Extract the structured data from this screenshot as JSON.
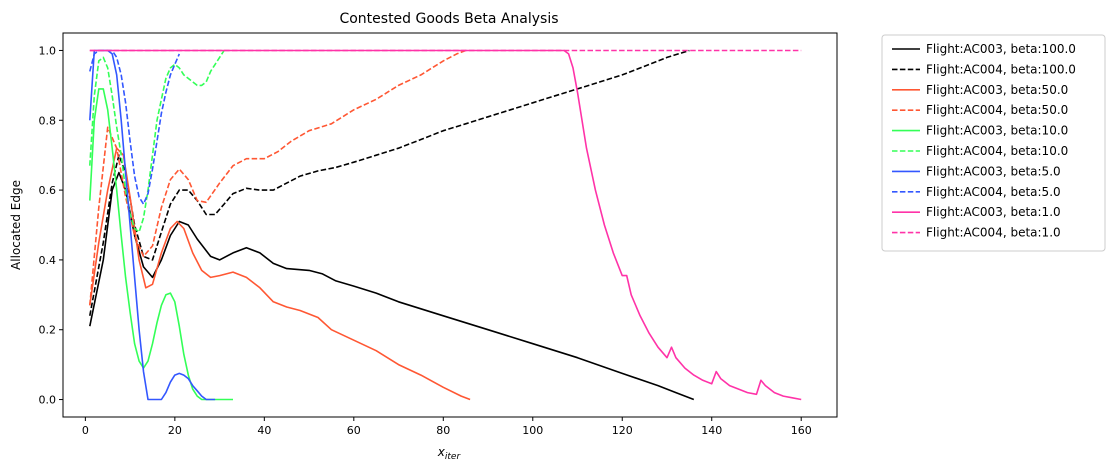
{
  "chart_data": {
    "type": "line",
    "title": "Contested Goods Beta Analysis",
    "xlabel_main": "x",
    "xlabel_sub": "iter",
    "ylabel": "Allocated Edge",
    "xlim": [
      -5,
      168
    ],
    "ylim": [
      -0.05,
      1.05
    ],
    "xticks": [
      0,
      20,
      40,
      60,
      80,
      100,
      120,
      140,
      160
    ],
    "yticks": [
      0.0,
      0.2,
      0.4,
      0.6,
      0.8,
      1.0
    ],
    "ytick_labels": [
      "0.0",
      "0.2",
      "0.4",
      "0.6",
      "0.8",
      "1.0"
    ],
    "grid": false,
    "legend_position": "outside-right",
    "series": [
      {
        "name": "Flight:AC003, beta:100.0",
        "color": "#000000",
        "dash": "solid",
        "points": [
          [
            1,
            0.21
          ],
          [
            4,
            0.4
          ],
          [
            6,
            0.6
          ],
          [
            7.5,
            0.65
          ],
          [
            9,
            0.6
          ],
          [
            11,
            0.47
          ],
          [
            13,
            0.38
          ],
          [
            15,
            0.35
          ],
          [
            17,
            0.4
          ],
          [
            19,
            0.47
          ],
          [
            21,
            0.51
          ],
          [
            23,
            0.5
          ],
          [
            25,
            0.46
          ],
          [
            28,
            0.41
          ],
          [
            30,
            0.4
          ],
          [
            33,
            0.42
          ],
          [
            36,
            0.435
          ],
          [
            39,
            0.42
          ],
          [
            42,
            0.39
          ],
          [
            45,
            0.375
          ],
          [
            50,
            0.37
          ],
          [
            53,
            0.36
          ],
          [
            56,
            0.34
          ],
          [
            60,
            0.325
          ],
          [
            65,
            0.305
          ],
          [
            70,
            0.28
          ],
          [
            75,
            0.26
          ],
          [
            80,
            0.24
          ],
          [
            90,
            0.2
          ],
          [
            100,
            0.16
          ],
          [
            110,
            0.12
          ],
          [
            120,
            0.075
          ],
          [
            128,
            0.04
          ],
          [
            132,
            0.02
          ],
          [
            136,
            0.0
          ]
        ]
      },
      {
        "name": "Flight:AC004, beta:100.0",
        "color": "#000000",
        "dash": "dashed",
        "points": [
          [
            1,
            0.24
          ],
          [
            4,
            0.45
          ],
          [
            6,
            0.62
          ],
          [
            7.5,
            0.7
          ],
          [
            9,
            0.65
          ],
          [
            11,
            0.5
          ],
          [
            13,
            0.41
          ],
          [
            15,
            0.4
          ],
          [
            17,
            0.48
          ],
          [
            19,
            0.56
          ],
          [
            21,
            0.6
          ],
          [
            23,
            0.6
          ],
          [
            25,
            0.57
          ],
          [
            27,
            0.53
          ],
          [
            29,
            0.53
          ],
          [
            31,
            0.56
          ],
          [
            33,
            0.59
          ],
          [
            36,
            0.605
          ],
          [
            39,
            0.6
          ],
          [
            42,
            0.6
          ],
          [
            45,
            0.62
          ],
          [
            48,
            0.64
          ],
          [
            52,
            0.655
          ],
          [
            56,
            0.665
          ],
          [
            60,
            0.68
          ],
          [
            65,
            0.7
          ],
          [
            70,
            0.72
          ],
          [
            75,
            0.745
          ],
          [
            80,
            0.77
          ],
          [
            85,
            0.79
          ],
          [
            90,
            0.81
          ],
          [
            95,
            0.83
          ],
          [
            100,
            0.85
          ],
          [
            105,
            0.87
          ],
          [
            110,
            0.89
          ],
          [
            115,
            0.91
          ],
          [
            120,
            0.93
          ],
          [
            125,
            0.955
          ],
          [
            130,
            0.98
          ],
          [
            135,
            1.0
          ]
        ]
      },
      {
        "name": "Flight:AC003, beta:50.0",
        "color": "#ff5733",
        "dash": "solid",
        "points": [
          [
            1,
            0.27
          ],
          [
            3,
            0.45
          ],
          [
            5,
            0.6
          ],
          [
            7,
            0.72
          ],
          [
            8.5,
            0.7
          ],
          [
            10,
            0.58
          ],
          [
            12,
            0.4
          ],
          [
            13.5,
            0.32
          ],
          [
            15,
            0.33
          ],
          [
            17,
            0.42
          ],
          [
            19,
            0.49
          ],
          [
            20.5,
            0.51
          ],
          [
            22,
            0.49
          ],
          [
            24,
            0.42
          ],
          [
            26,
            0.37
          ],
          [
            28,
            0.35
          ],
          [
            30,
            0.355
          ],
          [
            33,
            0.365
          ],
          [
            36,
            0.35
          ],
          [
            39,
            0.32
          ],
          [
            42,
            0.28
          ],
          [
            45,
            0.265
          ],
          [
            48,
            0.255
          ],
          [
            52,
            0.235
          ],
          [
            55,
            0.2
          ],
          [
            60,
            0.17
          ],
          [
            65,
            0.14
          ],
          [
            70,
            0.1
          ],
          [
            75,
            0.07
          ],
          [
            80,
            0.035
          ],
          [
            84,
            0.01
          ],
          [
            86,
            0.0
          ]
        ]
      },
      {
        "name": "Flight:AC004, beta:50.0",
        "color": "#ff5733",
        "dash": "dashed",
        "points": [
          [
            1,
            0.27
          ],
          [
            3,
            0.55
          ],
          [
            5,
            0.78
          ],
          [
            7,
            0.72
          ],
          [
            9,
            0.58
          ],
          [
            11,
            0.47
          ],
          [
            13,
            0.41
          ],
          [
            15,
            0.44
          ],
          [
            17,
            0.55
          ],
          [
            19,
            0.63
          ],
          [
            21,
            0.66
          ],
          [
            23,
            0.63
          ],
          [
            25,
            0.57
          ],
          [
            27,
            0.565
          ],
          [
            30,
            0.62
          ],
          [
            33,
            0.67
          ],
          [
            36,
            0.69
          ],
          [
            40,
            0.69
          ],
          [
            43,
            0.71
          ],
          [
            46,
            0.74
          ],
          [
            50,
            0.77
          ],
          [
            55,
            0.79
          ],
          [
            60,
            0.83
          ],
          [
            65,
            0.86
          ],
          [
            70,
            0.9
          ],
          [
            75,
            0.93
          ],
          [
            80,
            0.97
          ],
          [
            83,
            0.99
          ],
          [
            85,
            1.0
          ]
        ]
      },
      {
        "name": "Flight:AC003, beta:10.0",
        "color": "#33ff57",
        "dash": "solid",
        "points": [
          [
            1,
            0.57
          ],
          [
            2,
            0.8
          ],
          [
            3,
            0.89
          ],
          [
            4,
            0.89
          ],
          [
            5,
            0.83
          ],
          [
            6,
            0.72
          ],
          [
            7,
            0.6
          ],
          [
            8,
            0.47
          ],
          [
            9,
            0.35
          ],
          [
            10,
            0.25
          ],
          [
            11,
            0.16
          ],
          [
            12,
            0.11
          ],
          [
            13,
            0.09
          ],
          [
            14,
            0.11
          ],
          [
            15,
            0.16
          ],
          [
            16,
            0.22
          ],
          [
            17,
            0.27
          ],
          [
            18,
            0.3
          ],
          [
            19,
            0.305
          ],
          [
            20,
            0.28
          ],
          [
            21,
            0.21
          ],
          [
            22,
            0.13
          ],
          [
            23,
            0.07
          ],
          [
            24,
            0.03
          ],
          [
            25,
            0.01
          ],
          [
            26,
            0.0
          ],
          [
            28,
            0.0
          ],
          [
            33,
            0.0
          ]
        ]
      },
      {
        "name": "Flight:AC004, beta:10.0",
        "color": "#33ff57",
        "dash": "dashed",
        "points": [
          [
            1,
            0.67
          ],
          [
            2,
            0.87
          ],
          [
            3,
            0.97
          ],
          [
            4,
            0.98
          ],
          [
            5,
            0.95
          ],
          [
            6,
            0.87
          ],
          [
            7,
            0.78
          ],
          [
            8,
            0.7
          ],
          [
            9,
            0.6
          ],
          [
            10,
            0.53
          ],
          [
            11,
            0.49
          ],
          [
            12,
            0.48
          ],
          [
            13,
            0.52
          ],
          [
            14,
            0.6
          ],
          [
            15,
            0.7
          ],
          [
            16,
            0.8
          ],
          [
            17,
            0.86
          ],
          [
            18,
            0.92
          ],
          [
            19,
            0.95
          ],
          [
            20,
            0.96
          ],
          [
            21,
            0.95
          ],
          [
            22,
            0.93
          ],
          [
            24,
            0.91
          ],
          [
            25,
            0.9
          ],
          [
            26,
            0.9
          ],
          [
            27,
            0.91
          ],
          [
            28,
            0.94
          ],
          [
            29,
            0.96
          ],
          [
            30,
            0.98
          ],
          [
            31,
            1.0
          ]
        ]
      },
      {
        "name": "Flight:AC003, beta:5.0",
        "color": "#3357ff",
        "dash": "solid",
        "points": [
          [
            1,
            0.8
          ],
          [
            2,
            1.0
          ],
          [
            5,
            1.0
          ],
          [
            6,
            0.99
          ],
          [
            7,
            0.93
          ],
          [
            8,
            0.8
          ],
          [
            9,
            0.65
          ],
          [
            10,
            0.5
          ],
          [
            11,
            0.35
          ],
          [
            12,
            0.2
          ],
          [
            13,
            0.08
          ],
          [
            14,
            0.0
          ],
          [
            15,
            0.0
          ],
          [
            17,
            0.0
          ],
          [
            18,
            0.02
          ],
          [
            19,
            0.05
          ],
          [
            20,
            0.07
          ],
          [
            21,
            0.075
          ],
          [
            22,
            0.07
          ],
          [
            23,
            0.06
          ],
          [
            24,
            0.04
          ],
          [
            25,
            0.025
          ],
          [
            26,
            0.01
          ],
          [
            27,
            0.0
          ],
          [
            29,
            0.0
          ]
        ]
      },
      {
        "name": "Flight:AC004, beta:5.0",
        "color": "#3357ff",
        "dash": "dashed",
        "points": [
          [
            1,
            0.94
          ],
          [
            2,
            0.99
          ],
          [
            3,
            1.0
          ],
          [
            6,
            1.0
          ],
          [
            7,
            0.98
          ],
          [
            8,
            0.93
          ],
          [
            9,
            0.85
          ],
          [
            10,
            0.74
          ],
          [
            11,
            0.64
          ],
          [
            12,
            0.58
          ],
          [
            13,
            0.56
          ],
          [
            14,
            0.59
          ],
          [
            15,
            0.66
          ],
          [
            16,
            0.74
          ],
          [
            17,
            0.82
          ],
          [
            18,
            0.88
          ],
          [
            19,
            0.93
          ],
          [
            20,
            0.96
          ],
          [
            21,
            0.99
          ]
        ]
      },
      {
        "name": "Flight:AC003, beta:1.0",
        "color": "#ff33a8",
        "dash": "solid",
        "points": [
          [
            1,
            1.0
          ],
          [
            107,
            1.0
          ],
          [
            108,
            0.99
          ],
          [
            109,
            0.95
          ],
          [
            110,
            0.88
          ],
          [
            111,
            0.8
          ],
          [
            112,
            0.72
          ],
          [
            114,
            0.6
          ],
          [
            116,
            0.5
          ],
          [
            118,
            0.42
          ],
          [
            120,
            0.355
          ],
          [
            121,
            0.355
          ],
          [
            122,
            0.3
          ],
          [
            124,
            0.24
          ],
          [
            126,
            0.19
          ],
          [
            128,
            0.15
          ],
          [
            130,
            0.12
          ],
          [
            131,
            0.15
          ],
          [
            132,
            0.12
          ],
          [
            134,
            0.09
          ],
          [
            136,
            0.07
          ],
          [
            138,
            0.055
          ],
          [
            140,
            0.045
          ],
          [
            141,
            0.08
          ],
          [
            142,
            0.06
          ],
          [
            144,
            0.04
          ],
          [
            146,
            0.03
          ],
          [
            148,
            0.02
          ],
          [
            150,
            0.015
          ],
          [
            151,
            0.055
          ],
          [
            152,
            0.04
          ],
          [
            154,
            0.02
          ],
          [
            156,
            0.01
          ],
          [
            158,
            0.005
          ],
          [
            160,
            0.0
          ]
        ]
      },
      {
        "name": "Flight:AC004, beta:1.0",
        "color": "#ff33a8",
        "dash": "dashed",
        "points": [
          [
            1,
            1.0
          ],
          [
            160,
            1.0
          ]
        ]
      }
    ]
  }
}
